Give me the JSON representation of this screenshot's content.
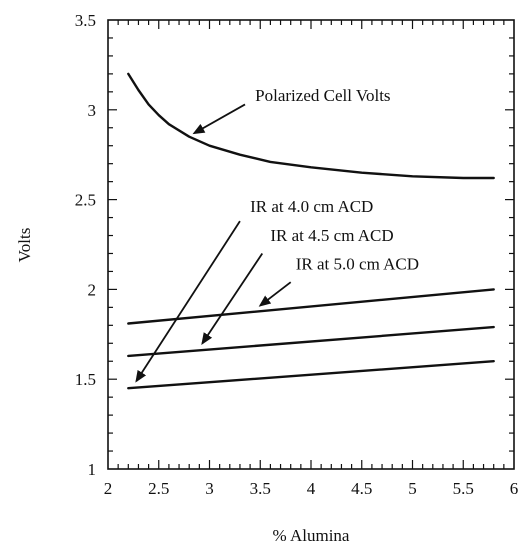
{
  "chart_data": {
    "type": "line",
    "xlabel": "% Alumina",
    "ylabel": "Volts",
    "xlim": [
      2,
      6
    ],
    "ylim": [
      1,
      3.5
    ],
    "x_ticks": [
      "2",
      "2.5",
      "3",
      "3.5",
      "4",
      "4.5",
      "5",
      "5.5",
      "6"
    ],
    "y_ticks": [
      "1",
      "1.5",
      "2",
      "2.5",
      "3",
      "3.5"
    ],
    "grid": false,
    "series": [
      {
        "name": "Polarized Cell Volts",
        "x": [
          2.2,
          2.3,
          2.4,
          2.5,
          2.6,
          2.8,
          3.0,
          3.3,
          3.6,
          4.0,
          4.5,
          5.0,
          5.5,
          5.8
        ],
        "y": [
          3.2,
          3.11,
          3.03,
          2.97,
          2.92,
          2.85,
          2.8,
          2.75,
          2.71,
          2.68,
          2.65,
          2.63,
          2.62,
          2.62
        ]
      },
      {
        "name": "IR at 5.0 cm ACD",
        "x": [
          2.2,
          5.8
        ],
        "y": [
          1.81,
          2.0
        ]
      },
      {
        "name": "IR at 4.5 cm ACD",
        "x": [
          2.2,
          5.8
        ],
        "y": [
          1.63,
          1.79
        ]
      },
      {
        "name": "IR at 4.0 cm ACD",
        "x": [
          2.2,
          5.8
        ],
        "y": [
          1.45,
          1.6
        ]
      }
    ],
    "annotations": [
      {
        "text": "Polarized Cell Volts",
        "tx": 3.45,
        "ty": 3.05,
        "ax": 2.85,
        "ay": 2.87,
        "sx": 3.35,
        "sy": 3.03
      },
      {
        "text": "IR at 4.0 cm ACD",
        "tx": 3.4,
        "ty": 2.43,
        "ax": 2.28,
        "ay": 1.49,
        "sx": 3.3,
        "sy": 2.38
      },
      {
        "text": "IR at 4.5 cm ACD",
        "tx": 3.6,
        "ty": 2.27,
        "ax": 2.93,
        "ay": 1.7,
        "sx": 3.52,
        "sy": 2.2
      },
      {
        "text": "IR at 5.0 cm ACD",
        "tx": 3.85,
        "ty": 2.11,
        "ax": 3.5,
        "ay": 1.91,
        "sx": 3.8,
        "sy": 2.04
      }
    ]
  }
}
